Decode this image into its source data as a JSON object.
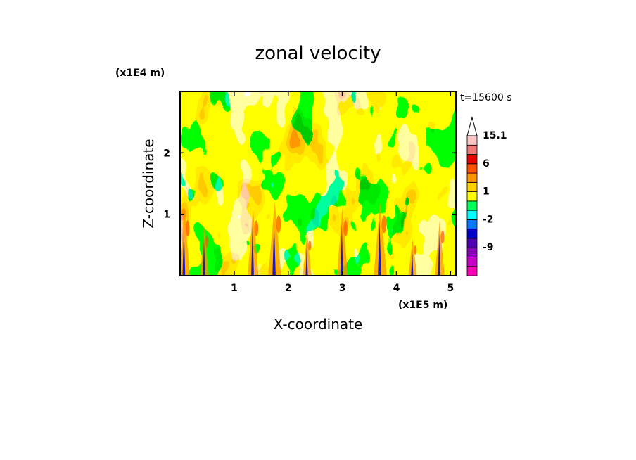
{
  "chart_data": {
    "type": "heatmap",
    "title": "zonal velocity",
    "xlabel": "X-coordinate",
    "ylabel": "Z-coordinate",
    "x_unit_label": "(x1E5 m)",
    "y_unit_label": "(x1E4 m)",
    "time_label": "t=15600 s",
    "xlim": [
      0,
      5.1
    ],
    "ylim": [
      0,
      3.0
    ],
    "x_ticks": [
      1,
      2,
      3,
      4,
      5
    ],
    "y_ticks": [
      1,
      2
    ],
    "colorbar": {
      "levels": [
        -15,
        -12,
        -9,
        -6,
        -4,
        -2,
        -1,
        0,
        1,
        2,
        4,
        6,
        9,
        12,
        15.1
      ],
      "colors": [
        "#ff00b4",
        "#c800c8",
        "#8c00be",
        "#5000b4",
        "#0000c8",
        "#0078ff",
        "#00ffff",
        "#00ff5a",
        "#ffff00",
        "#ffd200",
        "#ff9600",
        "#ff5000",
        "#e60000",
        "#f07878",
        "#ffc8c8"
      ],
      "labels": [
        "15.1",
        "6",
        "1",
        "-2",
        "-9"
      ],
      "label_values": [
        15.1,
        6,
        1,
        -2,
        -9
      ]
    }
  }
}
